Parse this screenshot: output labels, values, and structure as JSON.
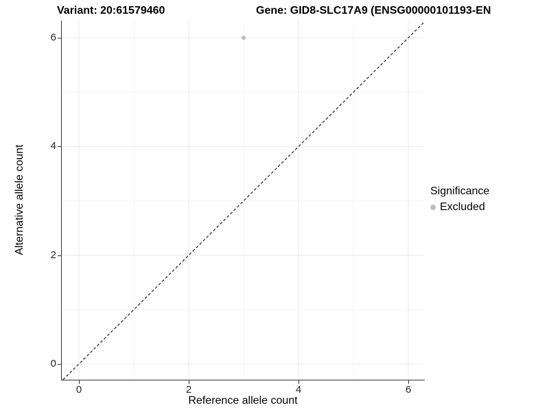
{
  "chart_data": {
    "type": "scatter",
    "title_left": "Variant: 20:61579460",
    "title_right": "Gene: GID8-SLC17A9 (ENSG00000101193-EN",
    "xlabel": "Reference allele count",
    "ylabel": "Alternative allele count",
    "xlim": [
      -0.3125,
      6.2875
    ],
    "ylim": [
      -0.29,
      6.316
    ],
    "x_major_ticks": [
      0,
      2,
      4,
      6
    ],
    "x_minor_ticks": [
      1,
      3,
      5
    ],
    "y_major_ticks": [
      0,
      2,
      4,
      6
    ],
    "y_minor_ticks": [
      1,
      3,
      5
    ],
    "grid": true,
    "points": [
      {
        "x": 3,
        "y": 6,
        "series": "Excluded"
      }
    ],
    "reference_line": {
      "kind": "identity-diagonal",
      "style": "dashed",
      "from": -0.29,
      "to": 6.2875
    },
    "legend": {
      "position": "right",
      "title": "Significance",
      "items": [
        {
          "label": "Excluded",
          "color": "#bebebe"
        }
      ]
    },
    "colors": {
      "point": "#bebebe",
      "grid_major": "#e8e8e8",
      "grid_minor": "#f4f4f4",
      "axis_line": "#333333",
      "dashed_line": "#1a1a1a",
      "tick_text": "#262626"
    }
  }
}
